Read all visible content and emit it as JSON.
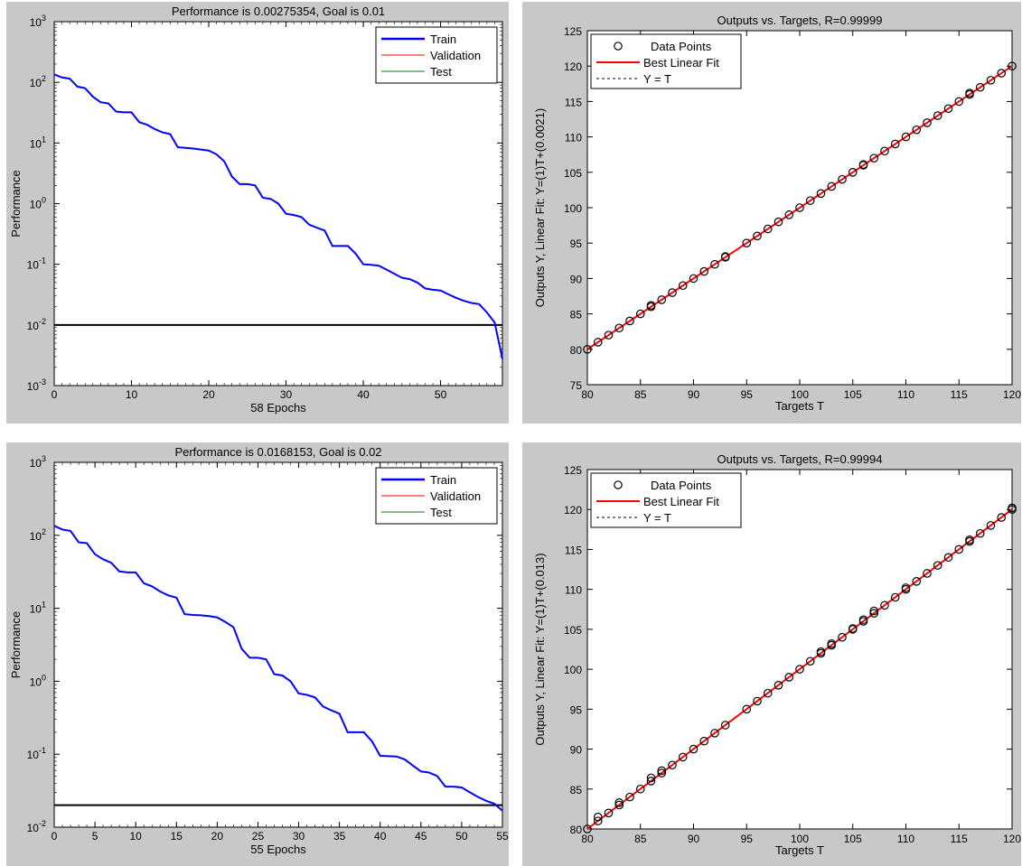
{
  "chart_data": [
    {
      "type": "line",
      "yscale": "log",
      "title": "Performance is 0.00275354, Goal is 0.01",
      "xlabel": "58 Epochs",
      "ylabel": "Performance",
      "xlim": [
        0,
        58
      ],
      "ylim": [
        0.001,
        1000
      ],
      "xticks": [
        0,
        10,
        20,
        30,
        40,
        50
      ],
      "yticks": [
        {
          "base": "10",
          "exp": "-3"
        },
        {
          "base": "10",
          "exp": "-2"
        },
        {
          "base": "10",
          "exp": "-1"
        },
        {
          "base": "10",
          "exp": "0"
        },
        {
          "base": "10",
          "exp": "1"
        },
        {
          "base": "10",
          "exp": "2"
        },
        {
          "base": "10",
          "exp": "3"
        }
      ],
      "goal": 0.01,
      "legend": {
        "placement": "top-right",
        "entries": [
          {
            "name": "Train",
            "color": "#0000ff"
          },
          {
            "name": "Validation",
            "color": "#ff0000"
          },
          {
            "name": "Test",
            "color": "#008000"
          }
        ]
      },
      "series": [
        {
          "name": "Train",
          "color": "#0000ff",
          "x": [
            0,
            1,
            2,
            3,
            4,
            5,
            6,
            7,
            8,
            9,
            10,
            11,
            12,
            13,
            14,
            15,
            16,
            17,
            18,
            19,
            20,
            21,
            22,
            23,
            24,
            25,
            26,
            27,
            28,
            29,
            30,
            31,
            32,
            33,
            34,
            35,
            36,
            37,
            38,
            39,
            40,
            41,
            42,
            43,
            44,
            45,
            46,
            47,
            48,
            49,
            50,
            51,
            52,
            53,
            54,
            55,
            56,
            57,
            58
          ],
          "y": [
            135,
            120,
            115,
            85,
            80,
            58,
            47,
            45,
            33,
            32,
            32,
            22,
            20,
            17,
            15,
            14,
            8.5,
            8.3,
            8.1,
            7.8,
            7.5,
            6.5,
            5.0,
            2.8,
            2.1,
            2.1,
            2.0,
            1.25,
            1.2,
            1.0,
            0.68,
            0.65,
            0.6,
            0.45,
            0.4,
            0.36,
            0.2,
            0.2,
            0.2,
            0.15,
            0.1,
            0.098,
            0.095,
            0.082,
            0.07,
            0.06,
            0.057,
            0.05,
            0.04,
            0.038,
            0.037,
            0.032,
            0.028,
            0.025,
            0.023,
            0.022,
            0.016,
            0.011,
            0.00275
          ]
        }
      ]
    },
    {
      "type": "scatter",
      "title": "Outputs vs. Targets, R=0.99999",
      "xlabel": "Targets T",
      "ylabel": "Outputs Y,  Linear Fit: Y=(1)T+(0.0021)",
      "xlim": [
        80,
        120
      ],
      "ylim": [
        75,
        125
      ],
      "xticks": [
        80,
        85,
        90,
        95,
        100,
        105,
        110,
        115,
        120
      ],
      "yticks": [
        75,
        80,
        85,
        90,
        95,
        100,
        105,
        110,
        115,
        120,
        125
      ],
      "fit": {
        "slope": 1,
        "intercept": 0.0021
      },
      "legend": {
        "placement": "top-left",
        "entries": [
          {
            "name": "Data Points"
          },
          {
            "name": "Best Linear Fit"
          },
          {
            "name": "Y = T"
          }
        ]
      },
      "points": [
        [
          80,
          80
        ],
        [
          81,
          81
        ],
        [
          82,
          82
        ],
        [
          83,
          83
        ],
        [
          84,
          84
        ],
        [
          85,
          85
        ],
        [
          86,
          86
        ],
        [
          86,
          86.2
        ],
        [
          87,
          87
        ],
        [
          88,
          88
        ],
        [
          89,
          89
        ],
        [
          90,
          90
        ],
        [
          91,
          91
        ],
        [
          92,
          92
        ],
        [
          93,
          93
        ],
        [
          93,
          93.1
        ],
        [
          95,
          95
        ],
        [
          96,
          96
        ],
        [
          97,
          97
        ],
        [
          98,
          98
        ],
        [
          99,
          99
        ],
        [
          100,
          100
        ],
        [
          101,
          101
        ],
        [
          102,
          102
        ],
        [
          103,
          103
        ],
        [
          104,
          104
        ],
        [
          105,
          105
        ],
        [
          106,
          106
        ],
        [
          106,
          106.1
        ],
        [
          107,
          107
        ],
        [
          108,
          108
        ],
        [
          109,
          109
        ],
        [
          110,
          110
        ],
        [
          111,
          111
        ],
        [
          112,
          112
        ],
        [
          113,
          113
        ],
        [
          114,
          114
        ],
        [
          115,
          115
        ],
        [
          116,
          116
        ],
        [
          116,
          116.2
        ],
        [
          117,
          117
        ],
        [
          118,
          118
        ],
        [
          119,
          119
        ],
        [
          120,
          120
        ]
      ]
    },
    {
      "type": "line",
      "yscale": "log",
      "title": "Performance is 0.0168153, Goal is 0.02",
      "xlabel": "55 Epochs",
      "ylabel": "Performance",
      "xlim": [
        0,
        55
      ],
      "ylim": [
        0.01,
        1000
      ],
      "xticks": [
        0,
        5,
        10,
        15,
        20,
        25,
        30,
        35,
        40,
        45,
        50,
        55
      ],
      "yticks": [
        {
          "base": "10",
          "exp": "-2"
        },
        {
          "base": "10",
          "exp": "-1"
        },
        {
          "base": "10",
          "exp": "0"
        },
        {
          "base": "10",
          "exp": "1"
        },
        {
          "base": "10",
          "exp": "2"
        },
        {
          "base": "10",
          "exp": "3"
        }
      ],
      "goal": 0.02,
      "legend": {
        "placement": "top-right",
        "entries": [
          {
            "name": "Train",
            "color": "#0000ff"
          },
          {
            "name": "Validation",
            "color": "#ff0000"
          },
          {
            "name": "Test",
            "color": "#008000"
          }
        ]
      },
      "series": [
        {
          "name": "Train",
          "color": "#0000ff",
          "x": [
            0,
            1,
            2,
            3,
            4,
            5,
            6,
            7,
            8,
            9,
            10,
            11,
            12,
            13,
            14,
            15,
            16,
            17,
            18,
            19,
            20,
            21,
            22,
            23,
            24,
            25,
            26,
            27,
            28,
            29,
            30,
            31,
            32,
            33,
            34,
            35,
            36,
            37,
            38,
            39,
            40,
            41,
            42,
            43,
            44,
            45,
            46,
            47,
            48,
            49,
            50,
            51,
            52,
            53,
            54,
            55
          ],
          "y": [
            135,
            120,
            115,
            80,
            78,
            55,
            47,
            42,
            32,
            31,
            31,
            22,
            20,
            17,
            15,
            14,
            8.3,
            8.1,
            8.0,
            7.8,
            7.5,
            6.5,
            5.5,
            2.8,
            2.1,
            2.1,
            2.0,
            1.25,
            1.2,
            1.0,
            0.68,
            0.65,
            0.6,
            0.45,
            0.4,
            0.36,
            0.2,
            0.2,
            0.2,
            0.15,
            0.095,
            0.094,
            0.093,
            0.085,
            0.07,
            0.058,
            0.056,
            0.05,
            0.036,
            0.036,
            0.035,
            0.03,
            0.026,
            0.023,
            0.021,
            0.0168
          ]
        }
      ]
    },
    {
      "type": "scatter",
      "title": "Outputs vs. Targets, R=0.99994",
      "xlabel": "Targets T",
      "ylabel": "Outputs Y,  Linear Fit: Y=(1)T+(0.013)",
      "xlim": [
        80,
        120
      ],
      "ylim": [
        80,
        125
      ],
      "xticks": [
        80,
        85,
        90,
        95,
        100,
        105,
        110,
        115,
        120
      ],
      "yticks": [
        80,
        85,
        90,
        95,
        100,
        105,
        110,
        115,
        120,
        125
      ],
      "fit": {
        "slope": 1,
        "intercept": 0.013
      },
      "legend": {
        "placement": "top-left",
        "entries": [
          {
            "name": "Data Points"
          },
          {
            "name": "Best Linear Fit"
          },
          {
            "name": "Y = T"
          }
        ]
      },
      "points": [
        [
          80,
          80
        ],
        [
          81,
          81
        ],
        [
          81,
          81.5
        ],
        [
          82,
          82
        ],
        [
          83,
          83
        ],
        [
          83,
          83.3
        ],
        [
          84,
          84
        ],
        [
          85,
          85
        ],
        [
          86,
          86
        ],
        [
          86,
          86.4
        ],
        [
          87,
          87
        ],
        [
          87,
          87.3
        ],
        [
          88,
          88
        ],
        [
          89,
          89
        ],
        [
          90,
          90
        ],
        [
          91,
          91
        ],
        [
          92,
          92
        ],
        [
          93,
          93
        ],
        [
          95,
          95
        ],
        [
          96,
          96
        ],
        [
          97,
          97
        ],
        [
          98,
          98
        ],
        [
          99,
          99
        ],
        [
          100,
          100
        ],
        [
          101,
          101
        ],
        [
          102,
          102
        ],
        [
          102,
          102.2
        ],
        [
          103,
          103
        ],
        [
          103,
          103.2
        ],
        [
          104,
          104
        ],
        [
          105,
          105
        ],
        [
          105,
          105.1
        ],
        [
          106,
          106
        ],
        [
          106,
          106.2
        ],
        [
          107,
          107
        ],
        [
          107,
          107.3
        ],
        [
          108,
          108
        ],
        [
          109,
          109
        ],
        [
          110,
          110
        ],
        [
          110,
          110.2
        ],
        [
          111,
          111
        ],
        [
          112,
          112
        ],
        [
          113,
          113
        ],
        [
          114,
          114
        ],
        [
          115,
          115
        ],
        [
          116,
          116
        ],
        [
          116,
          116.2
        ],
        [
          117,
          117
        ],
        [
          118,
          118
        ],
        [
          119,
          119
        ],
        [
          120,
          120
        ],
        [
          120,
          120.2
        ]
      ]
    }
  ]
}
